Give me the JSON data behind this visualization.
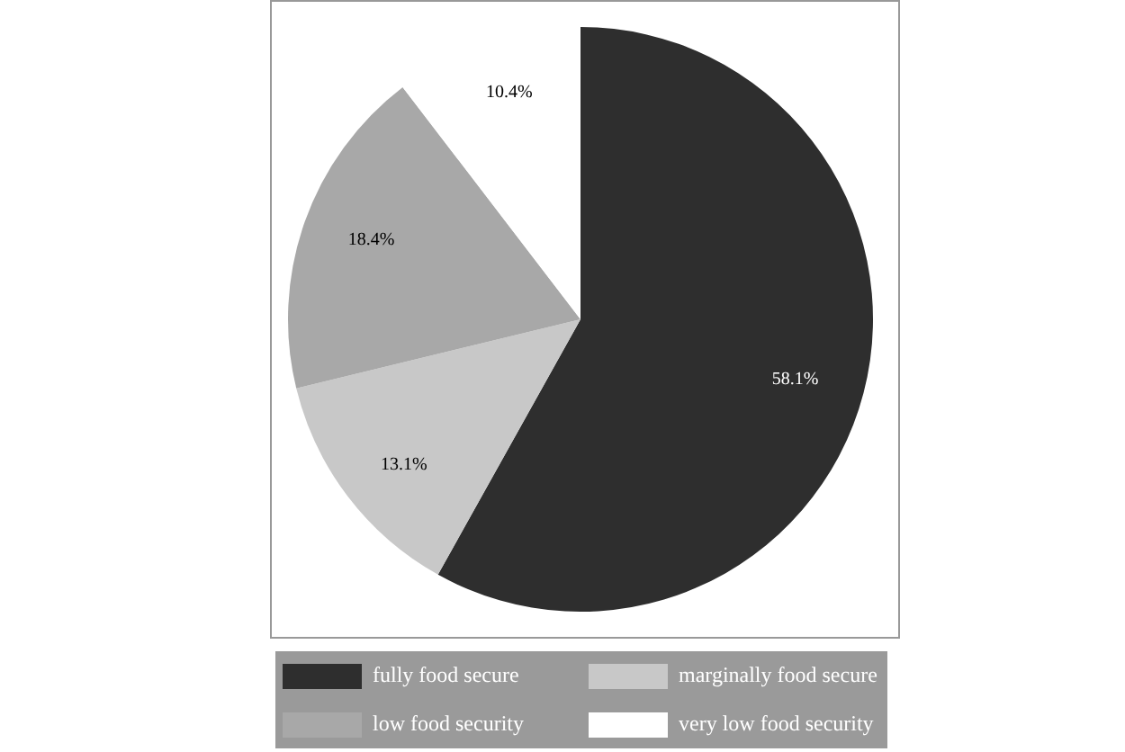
{
  "chart_data": {
    "type": "pie",
    "categories": [
      "fully food secure",
      "marginally food secure",
      "low food security",
      "very low food security"
    ],
    "values": [
      58.1,
      13.1,
      18.4,
      10.4
    ],
    "colors": [
      "#2e2e2e",
      "#c8c8c8",
      "#a8a8a8",
      "#ffffff"
    ],
    "value_labels": [
      "58.1%",
      "13.1%",
      "18.4%",
      "10.4%"
    ],
    "legend": "bottom"
  }
}
